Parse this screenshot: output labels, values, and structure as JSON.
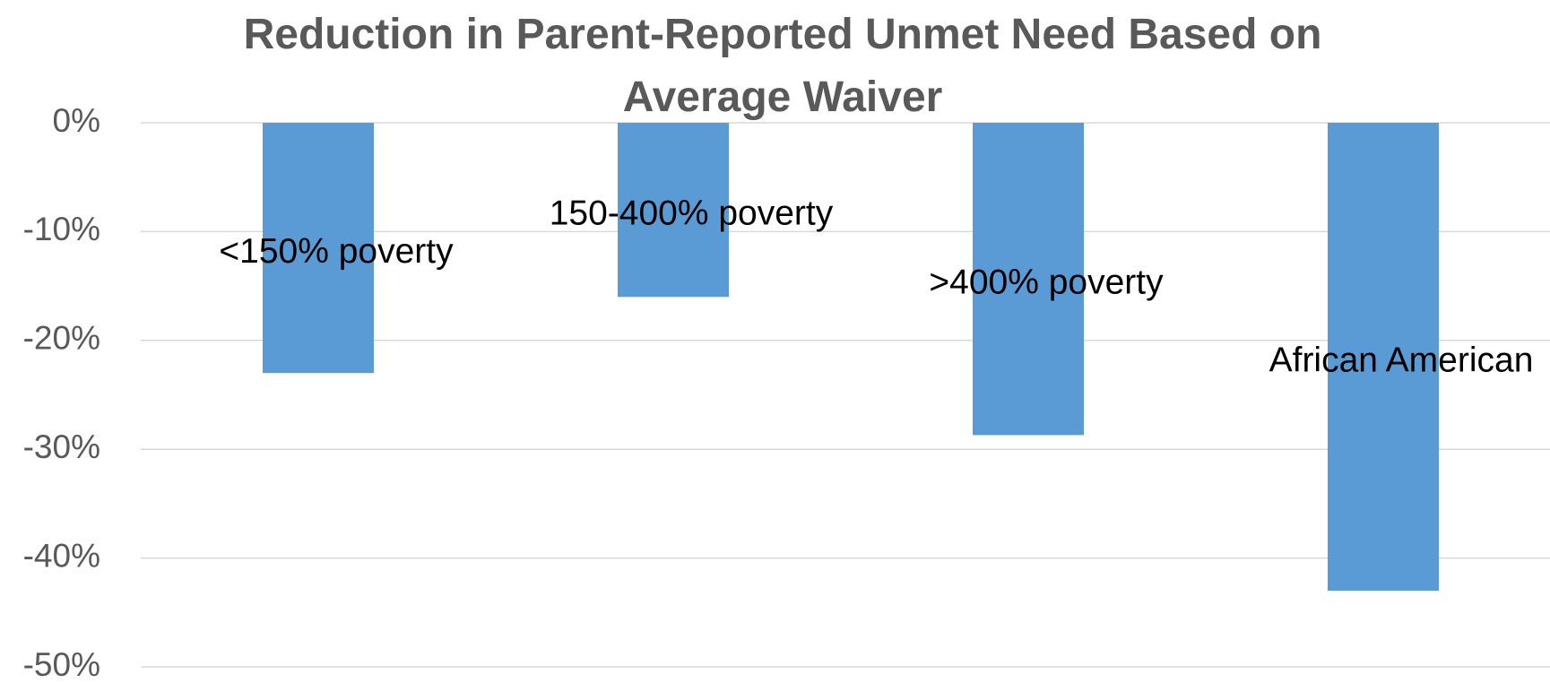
{
  "chart_data": {
    "type": "bar",
    "title": "Reduction in Parent-Reported Unmet Need Based on Average Waiver",
    "categories": [
      "<150% poverty",
      "150-400% poverty",
      ">400% poverty",
      "African American"
    ],
    "values": [
      -23,
      -16,
      -28.7,
      -43
    ],
    "color": "#5b9bd5",
    "ylim": [
      -50,
      0
    ],
    "yticks": [
      {
        "value": 0,
        "label": "0%"
      },
      {
        "value": -10,
        "label": "-10%"
      },
      {
        "value": -20,
        "label": "-20%"
      },
      {
        "value": -30,
        "label": "-30%"
      },
      {
        "value": -40,
        "label": "-40%"
      },
      {
        "value": -50,
        "label": "-50%"
      }
    ],
    "grid": true
  }
}
